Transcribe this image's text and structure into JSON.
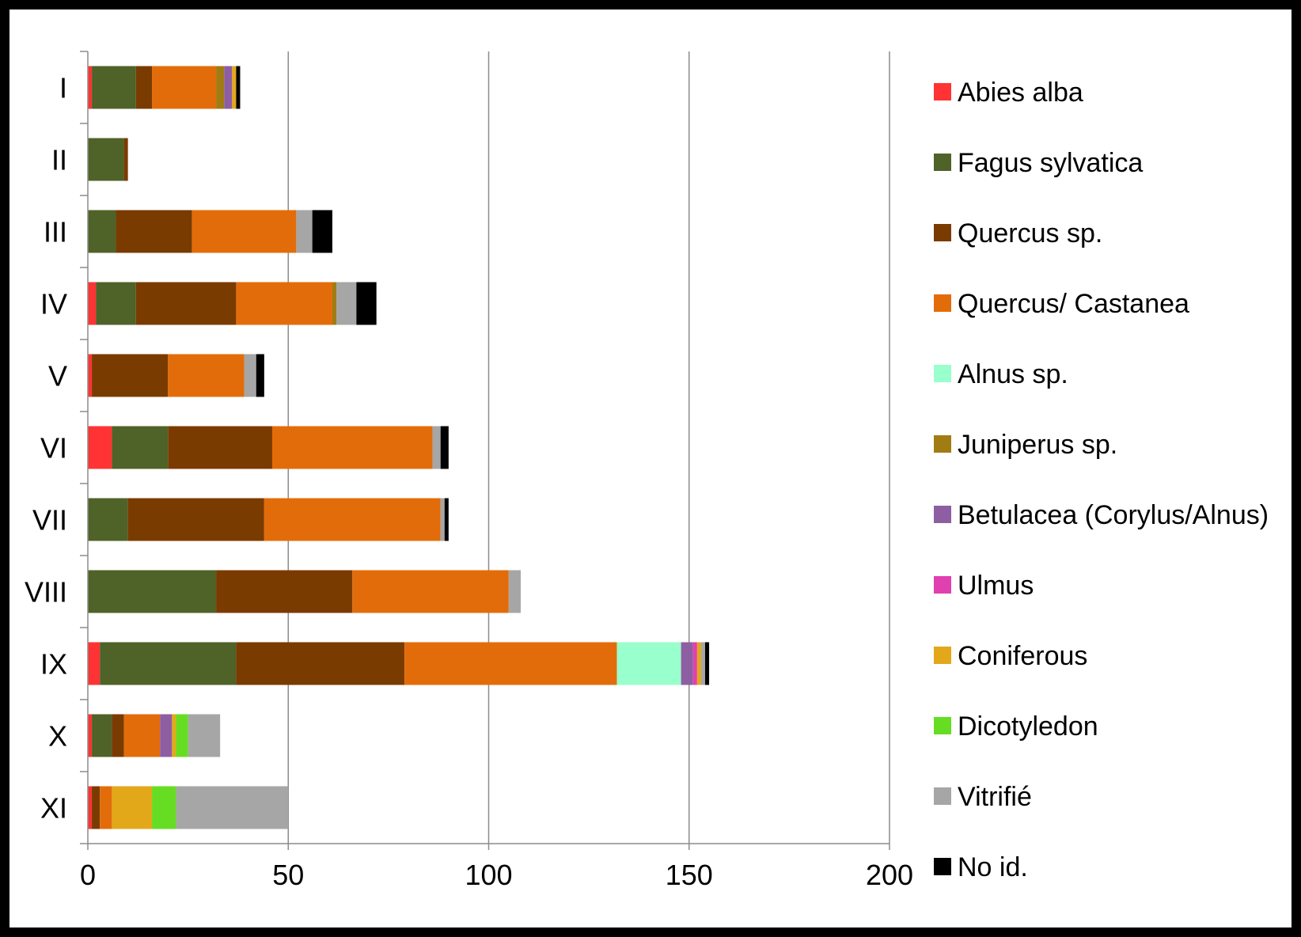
{
  "chart_data": {
    "type": "bar",
    "orientation": "horizontal",
    "stacked": true,
    "title": "",
    "xlabel": "",
    "ylabel": "",
    "xlim": [
      0,
      200
    ],
    "x_ticks": [
      "0",
      "50",
      "100",
      "150",
      "200"
    ],
    "grid": "vertical major gridlines",
    "legend_position": "right",
    "categories": [
      "I",
      "II",
      "III",
      "IV",
      "V",
      "VI",
      "VII",
      "VIII",
      "IX",
      "X",
      "XI"
    ],
    "series": [
      {
        "name": "Abies alba",
        "color": "#ff3333",
        "values": [
          1,
          0,
          0,
          2,
          1,
          6,
          0,
          0,
          3,
          1,
          1
        ]
      },
      {
        "name": "Fagus sylvatica",
        "color": "#4f6228",
        "values": [
          11,
          9,
          7,
          10,
          0,
          14,
          10,
          32,
          34,
          5,
          0
        ]
      },
      {
        "name": "Quercus sp.",
        "color": "#7a3b00",
        "values": [
          4,
          1,
          19,
          25,
          19,
          26,
          34,
          34,
          42,
          3,
          2
        ]
      },
      {
        "name": "Quercus/ Castanea",
        "color": "#e36c0a",
        "values": [
          16,
          0,
          26,
          24,
          19,
          40,
          44,
          39,
          53,
          9,
          3
        ]
      },
      {
        "name": "Alnus sp.",
        "color": "#99ffcc",
        "values": [
          0,
          0,
          0,
          0,
          0,
          0,
          0,
          0,
          16,
          0,
          0
        ]
      },
      {
        "name": "Juniperus sp.",
        "color": "#a07c12",
        "values": [
          2,
          0,
          0,
          1,
          0,
          0,
          0,
          0,
          0,
          0,
          0
        ]
      },
      {
        "name": "Betulacea (Corylus/Alnus)",
        "color": "#8e5ea2",
        "values": [
          2,
          0,
          0,
          0,
          0,
          0,
          0,
          0,
          3,
          3,
          0
        ]
      },
      {
        "name": "Ulmus",
        "color": "#e040b0",
        "values": [
          0,
          0,
          0,
          0,
          0,
          0,
          0,
          0,
          1,
          0,
          0
        ]
      },
      {
        "name": "Coniferous",
        "color": "#e3a81a",
        "values": [
          1,
          0,
          0,
          0,
          0,
          0,
          0,
          0,
          1,
          1,
          10
        ]
      },
      {
        "name": "Dicotyledon",
        "color": "#66dd22",
        "values": [
          0,
          0,
          0,
          0,
          0,
          0,
          0,
          0,
          0,
          3,
          6
        ]
      },
      {
        "name": "Vitrifié",
        "color": "#a6a6a6",
        "values": [
          0,
          0,
          4,
          5,
          3,
          2,
          1,
          3,
          1,
          8,
          28
        ]
      },
      {
        "name": "No id.",
        "color": "#000000",
        "values": [
          1,
          0,
          5,
          5,
          2,
          2,
          1,
          0,
          1,
          0,
          0
        ]
      }
    ]
  }
}
